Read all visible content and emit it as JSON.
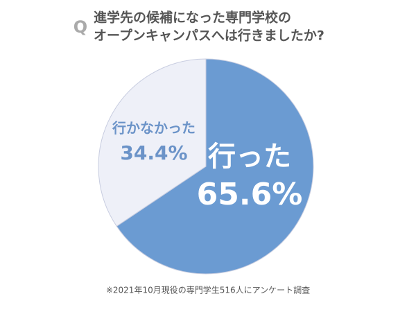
{
  "chart_data": {
    "type": "pie",
    "q_label": "Q",
    "title": [
      "進学先の候補になった専門学校の",
      "オープンキャンパスへは行きましたか?"
    ],
    "categories": [
      "行った",
      "行かなかった"
    ],
    "values": [
      65.6,
      34.4
    ],
    "value_labels": [
      "65.6%",
      "34.4%"
    ],
    "colors": [
      "#6b9bd2",
      "#eef0f8"
    ],
    "note": "※2021年10月現役の専門学生516人にアンケート調査"
  }
}
